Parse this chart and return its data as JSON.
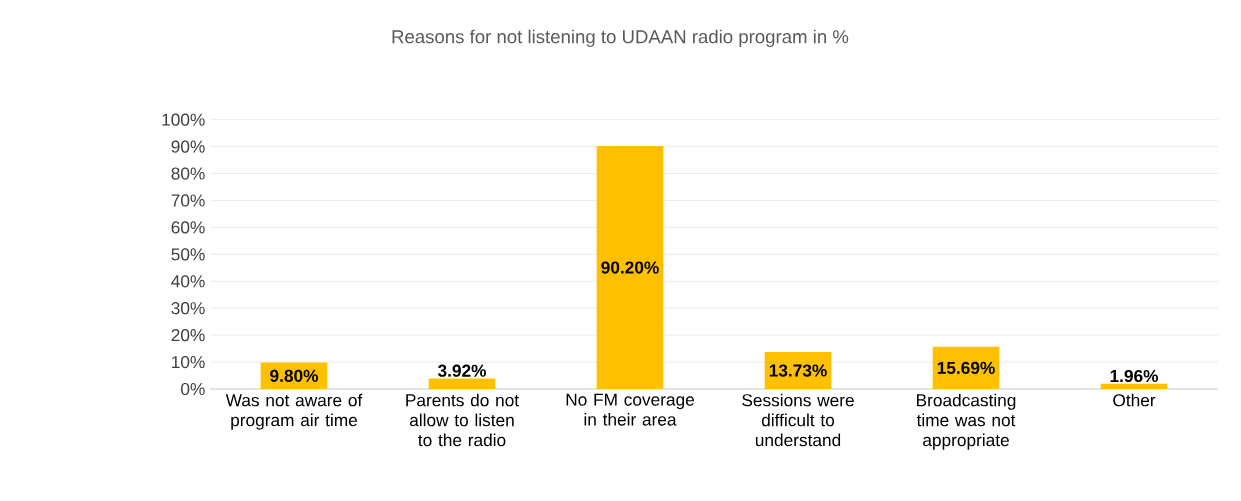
{
  "chart_data": {
    "type": "bar",
    "title": "Reasons for not listening to UDAAN radio program in %",
    "categories": [
      "Was not aware of program air time",
      "Parents do not allow to listen to the radio",
      "No FM coverage in their area",
      "Sessions were difficult to understand",
      "Broadcasting time was not appropriate",
      "Other"
    ],
    "values": [
      9.8,
      3.92,
      90.2,
      13.73,
      15.69,
      1.96
    ],
    "value_labels": [
      "9.80%",
      "3.92%",
      "90.20%",
      "13.73%",
      "15.69%",
      "1.96%"
    ],
    "color": "#ffc000",
    "ylim": [
      0,
      100
    ],
    "yticks": [
      {
        "value": 0,
        "label": "0%"
      },
      {
        "value": 10,
        "label": "10%"
      },
      {
        "value": 20,
        "label": "20%"
      },
      {
        "value": 30,
        "label": "30%"
      },
      {
        "value": 40,
        "label": "40%"
      },
      {
        "value": 50,
        "label": "50%"
      },
      {
        "value": 60,
        "label": "60%"
      },
      {
        "value": 70,
        "label": "70%"
      },
      {
        "value": 80,
        "label": "80%"
      },
      {
        "value": 90,
        "label": "90%"
      },
      {
        "value": 100,
        "label": "100%"
      }
    ],
    "grid": "y"
  }
}
